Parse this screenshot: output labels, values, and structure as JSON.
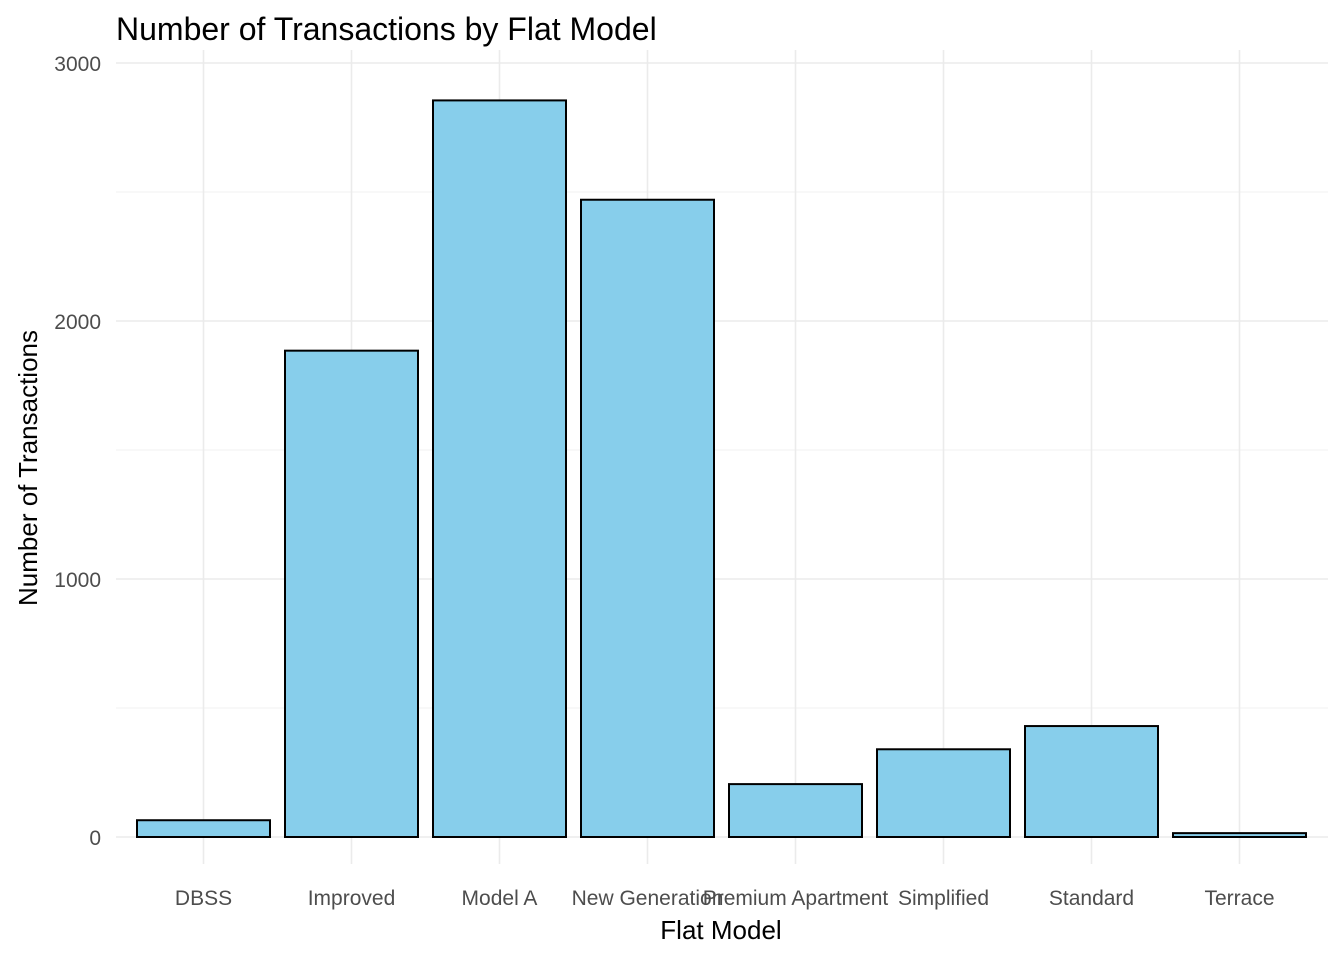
{
  "chart_data": {
    "type": "bar",
    "title": "Number of Transactions by Flat Model",
    "xlabel": "Flat Model",
    "ylabel": "Number of Transactions",
    "categories": [
      "DBSS",
      "Improved",
      "Model A",
      "New Generation",
      "Premium Apartment",
      "Simplified",
      "Standard",
      "Terrace"
    ],
    "values": [
      65,
      1885,
      2855,
      2470,
      205,
      340,
      430,
      15
    ],
    "ylim": [
      0,
      3000
    ],
    "yticks": [
      "0",
      "1000",
      "2000",
      "3000"
    ],
    "grid": true,
    "legend": "none",
    "colors": {
      "bar_fill": "#87CEEB",
      "bar_stroke": "#000000"
    }
  }
}
